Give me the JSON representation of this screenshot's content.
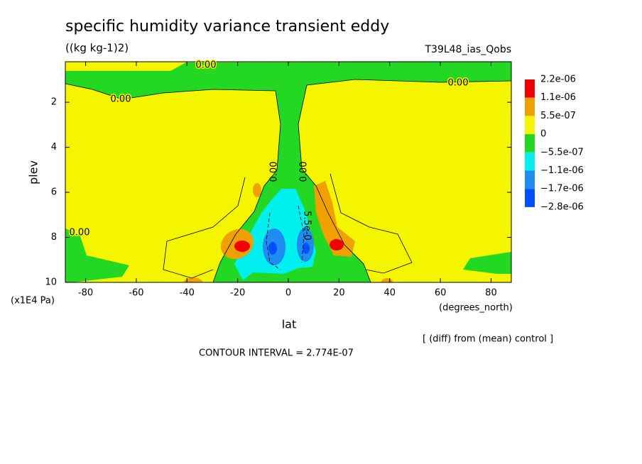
{
  "chart_data": {
    "type": "contour",
    "title": "specific humidity variance transient eddy",
    "subtitle": "((kg kg-1)2)",
    "run_label": "T39L48_ias_Qobs",
    "x_label": "lat",
    "x_units": "(degrees_north)",
    "y_label": "plev",
    "y_units": "(x1E4 Pa)",
    "note": "[ (diff) from (mean) control ]",
    "contour_interval": "CONTOUR INTERVAL = 2.774E-07",
    "xlim": [
      -88,
      88
    ],
    "xticks": [
      -80,
      -60,
      -40,
      -20,
      0,
      20,
      40,
      60,
      80
    ],
    "ylim": [
      10,
      0.2
    ],
    "yticks": [
      2,
      4,
      6,
      8,
      10
    ],
    "contour_labels": [
      "0.00",
      "0.00",
      "0.00",
      "0.00",
      "0.00",
      "0.00",
      "5.5e-0"
    ],
    "colorbar": {
      "levels": [
        {
          "value": 2.2e-06,
          "label": "2.2e-06"
        },
        {
          "value": 1.1e-06,
          "label": "1.1e-06"
        },
        {
          "value": 5.5e-07,
          "label": "5.5e-07"
        },
        0,
        {
          "value": -5.5e-07,
          "label": "−5.5e-07"
        },
        {
          "value": -1.1e-06,
          "label": "−1.1e-06"
        },
        {
          "value": -1.7e-06,
          "label": "−1.7e-06"
        },
        {
          "value": -2.8e-06,
          "label": "−2.8e-06"
        }
      ],
      "colors": [
        "#f00000",
        "#f0a000",
        "#f5f500",
        "#22d822",
        "#00f0f0",
        "#1e8cf0",
        "#0050ff"
      ]
    }
  }
}
